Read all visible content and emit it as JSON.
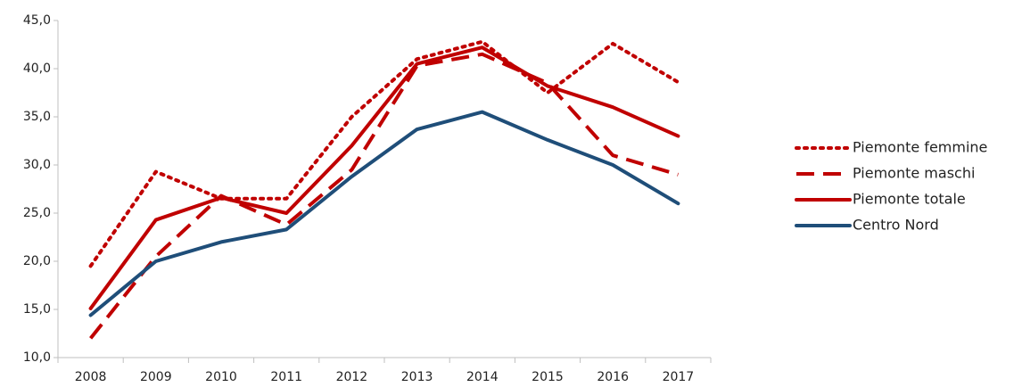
{
  "chart_data": {
    "type": "line",
    "categories": [
      "2008",
      "2009",
      "2010",
      "2011",
      "2012",
      "2013",
      "2014",
      "2015",
      "2016",
      "2017"
    ],
    "series": [
      {
        "name": "Piemonte femmine",
        "color": "#c00000",
        "dash": "dotted",
        "values": [
          19.5,
          29.3,
          26.5,
          26.5,
          35.0,
          41.0,
          42.8,
          37.5,
          42.6,
          38.6
        ]
      },
      {
        "name": "Piemonte maschi",
        "color": "#c00000",
        "dash": "dashed",
        "values": [
          12.0,
          20.5,
          26.8,
          23.8,
          29.5,
          40.3,
          41.5,
          38.5,
          31.0,
          29.0
        ]
      },
      {
        "name": "Piemonte totale",
        "color": "#c00000",
        "dash": "solid",
        "values": [
          15.1,
          24.3,
          26.6,
          25.0,
          32.0,
          40.5,
          42.2,
          38.2,
          36.0,
          33.0
        ]
      },
      {
        "name": "Centro Nord",
        "color": "#1f4e79",
        "dash": "solid",
        "values": [
          14.4,
          20.0,
          22.0,
          23.3,
          28.8,
          33.7,
          35.5,
          32.6,
          30.0,
          26.0
        ]
      }
    ],
    "ylim": [
      10,
      45
    ],
    "yticks": [
      {
        "value": 10,
        "label": "10,0"
      },
      {
        "value": 15,
        "label": "15,0"
      },
      {
        "value": 20,
        "label": "20,0"
      },
      {
        "value": 25,
        "label": "25,0"
      },
      {
        "value": 30,
        "label": "30,0"
      },
      {
        "value": 35,
        "label": "35,0"
      },
      {
        "value": 40,
        "label": "40,0"
      },
      {
        "value": 45,
        "label": "45,0"
      }
    ],
    "grid": false,
    "legend": "right"
  }
}
